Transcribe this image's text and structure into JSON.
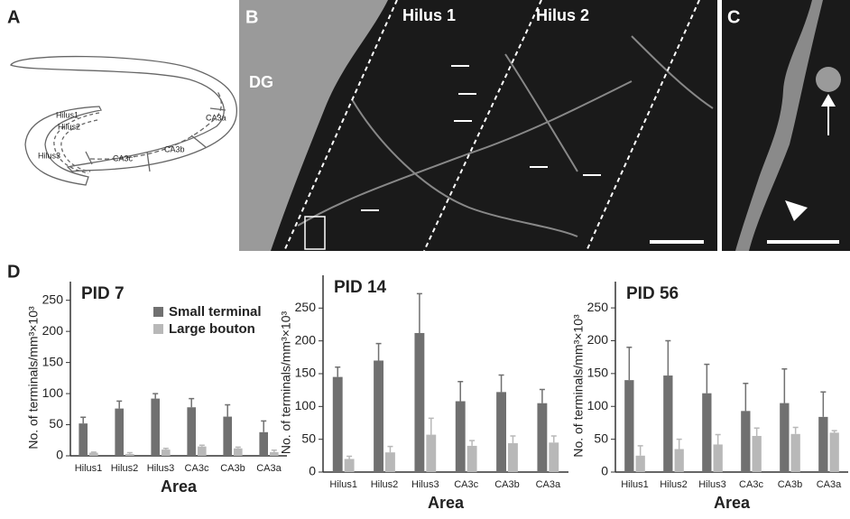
{
  "panel_labels": [
    "A",
    "B",
    "C",
    "D"
  ],
  "diagram_labels": [
    "Hilus1",
    "Hilus2",
    "Hilus3",
    "CA3c",
    "CA3b",
    "CA3a"
  ],
  "micrograph_labels": [
    "DG",
    "Hilus 1",
    "Hilus 2"
  ],
  "chart_data": [
    {
      "type": "bar",
      "title": "PID 7",
      "y_label": "No. of terminals/mm³×10³",
      "x_label": "Area",
      "categories": [
        "Hilus1",
        "Hilus2",
        "Hilus3",
        "CA3c",
        "CA3b",
        "CA3a"
      ],
      "series": [
        {
          "name": "Small terminal",
          "color": "#707070",
          "values": [
            52,
            76,
            92,
            78,
            63,
            38
          ],
          "errors": [
            10,
            12,
            8,
            14,
            19,
            18
          ]
        },
        {
          "name": "Large bouton",
          "color": "#b8b8b8",
          "values": [
            5,
            3,
            10,
            15,
            12,
            6
          ],
          "errors": [
            1,
            2,
            2,
            2,
            2,
            3
          ]
        }
      ],
      "ylim": [
        0,
        280
      ],
      "yticks": [
        0,
        50,
        100,
        150,
        200,
        250
      ],
      "legend": true
    },
    {
      "type": "bar",
      "title": "PID 14",
      "y_label": "No. of terminals/mm³×10³",
      "x_label": "Area",
      "categories": [
        "Hilus1",
        "Hilus2",
        "Hilus3",
        "CA3c",
        "CA3b",
        "CA3a"
      ],
      "series": [
        {
          "color": "#707070",
          "values": [
            145,
            170,
            212,
            108,
            122,
            105
          ],
          "errors": [
            15,
            26,
            60,
            30,
            26,
            21
          ]
        },
        {
          "color": "#b8b8b8",
          "values": [
            20,
            30,
            57,
            40,
            44,
            45
          ],
          "errors": [
            4,
            9,
            25,
            8,
            11,
            10
          ]
        }
      ],
      "ylim": [
        0,
        300
      ],
      "yticks": [
        0,
        50,
        100,
        150,
        200,
        250
      ],
      "legend": false
    },
    {
      "type": "bar",
      "title": "PID 56",
      "y_label": "No. of terminals/mm³×10³",
      "x_label": "Area",
      "categories": [
        "Hilus1",
        "Hilus2",
        "Hilus3",
        "CA3c",
        "CA3b",
        "CA3a"
      ],
      "series": [
        {
          "color": "#707070",
          "values": [
            140,
            147,
            120,
            93,
            105,
            84
          ],
          "errors": [
            50,
            53,
            44,
            42,
            52,
            38
          ]
        },
        {
          "color": "#b8b8b8",
          "values": [
            25,
            35,
            42,
            55,
            58,
            60
          ],
          "errors": [
            15,
            15,
            15,
            12,
            10,
            3
          ]
        }
      ],
      "ylim": [
        0,
        290
      ],
      "yticks": [
        0,
        50,
        100,
        150,
        200,
        250
      ],
      "legend": false
    }
  ]
}
